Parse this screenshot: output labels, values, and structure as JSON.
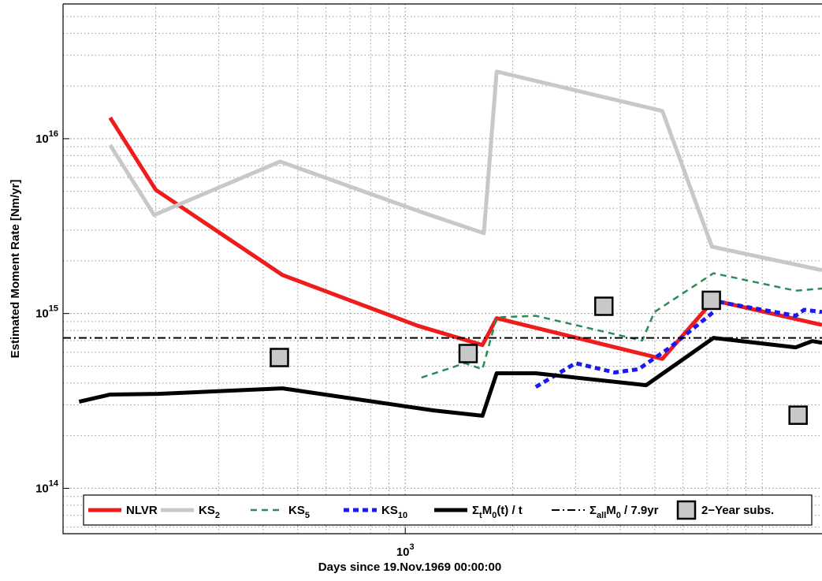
{
  "chart_data": {
    "type": "line",
    "xlabel": "Days since 19.Nov.1969 00:00:00",
    "ylabel": "Estimated Moment Rate [Nm/yr]",
    "xscale": "log",
    "yscale": "log",
    "grid": true,
    "minor_grid": true,
    "xlim": [
      110,
      14700
    ],
    "ylim": [
      55000000000000.0,
      5.9e+16
    ],
    "xticks": [
      {
        "value": 1000,
        "label": "10^{3}"
      }
    ],
    "yticks": [
      {
        "value": 100000000000000.0,
        "label": "10^{14}"
      },
      {
        "value": 1000000000000000.0,
        "label": "10^{15}"
      },
      {
        "value": 1e+16,
        "label": "10^{16}"
      }
    ],
    "legend": "bottom",
    "series": [
      {
        "name": "NLVR",
        "color": "#ee1c1c",
        "linestyle": "solid",
        "width": 5,
        "x": [
          149,
          200,
          453,
          1085,
          1645,
          1803,
          5250,
          7300,
          14700
        ],
        "values": [
          1.32e+16,
          5100000000000000.0,
          1660000000000000.0,
          850000000000000.0,
          660000000000000.0,
          940000000000000.0,
          550000000000000.0,
          1190000000000000.0,
          860000000000000.0
        ]
      },
      {
        "name": "KS_{2}",
        "color": "#c8c8c8",
        "linestyle": "solid",
        "width": 5,
        "x": [
          149,
          198,
          446,
          1140,
          1660,
          1803,
          5250,
          7230,
          14700
        ],
        "values": [
          9200000000000000.0,
          3660000000000000.0,
          7400000000000000.0,
          3730000000000000.0,
          2880000000000000.0,
          2.42e+16,
          1.44e+16,
          2410000000000000.0,
          1770000000000000.0
        ]
      },
      {
        "name": "KS_{5}",
        "color": "#2e8b57",
        "linestyle": "dashed",
        "width": 2.5,
        "x": [
          1110,
          1470,
          1645,
          1803,
          2320,
          4610,
          4990,
          7300,
          12400,
          14700
        ],
        "values": [
          430000000000000.0,
          520000000000000.0,
          480000000000000.0,
          950000000000000.0,
          970000000000000.0,
          700000000000000.0,
          1020000000000000.0,
          1700000000000000.0,
          1350000000000000.0,
          1390000000000000.0
        ]
      },
      {
        "name": "KS_{10}",
        "color": "#1a1aee",
        "linestyle": "dotted",
        "width": 5,
        "x": [
          2320,
          3000,
          3860,
          4500,
          5520,
          7300,
          7480,
          12400,
          13100,
          14700
        ],
        "values": [
          380000000000000.0,
          520000000000000.0,
          460000000000000.0,
          480000000000000.0,
          640000000000000.0,
          1020000000000000.0,
          1170000000000000.0,
          970000000000000.0,
          1050000000000000.0,
          1020000000000000.0
        ]
      },
      {
        "name": "Σ_{t}M_{0}(t) / t",
        "color": "#000000",
        "linestyle": "solid",
        "width": 5,
        "x": [
          122,
          149,
          203,
          453,
          1200,
          1645,
          1803,
          2320,
          4730,
          7300,
          12400,
          13800,
          14700
        ],
        "values": [
          313000000000000.0,
          344000000000000.0,
          347000000000000.0,
          373000000000000.0,
          279000000000000.0,
          260000000000000.0,
          455000000000000.0,
          455000000000000.0,
          389000000000000.0,
          725000000000000.0,
          640000000000000.0,
          695000000000000.0,
          680000000000000.0
        ]
      },
      {
        "name": "Σ_{all}M_{0} / 7.9yr",
        "color": "#000000",
        "linestyle": "dashdot",
        "width": 2,
        "hline": 725000000000000.0
      },
      {
        "name": "2−Year subs.",
        "color": "#c8c8c8",
        "marker": "square",
        "x": [
          444,
          1500,
          3600,
          7200,
          12600
        ],
        "values": [
          560000000000000.0,
          590000000000000.0,
          1100000000000000.0,
          1190000000000000.0,
          262000000000000.0
        ]
      }
    ]
  }
}
